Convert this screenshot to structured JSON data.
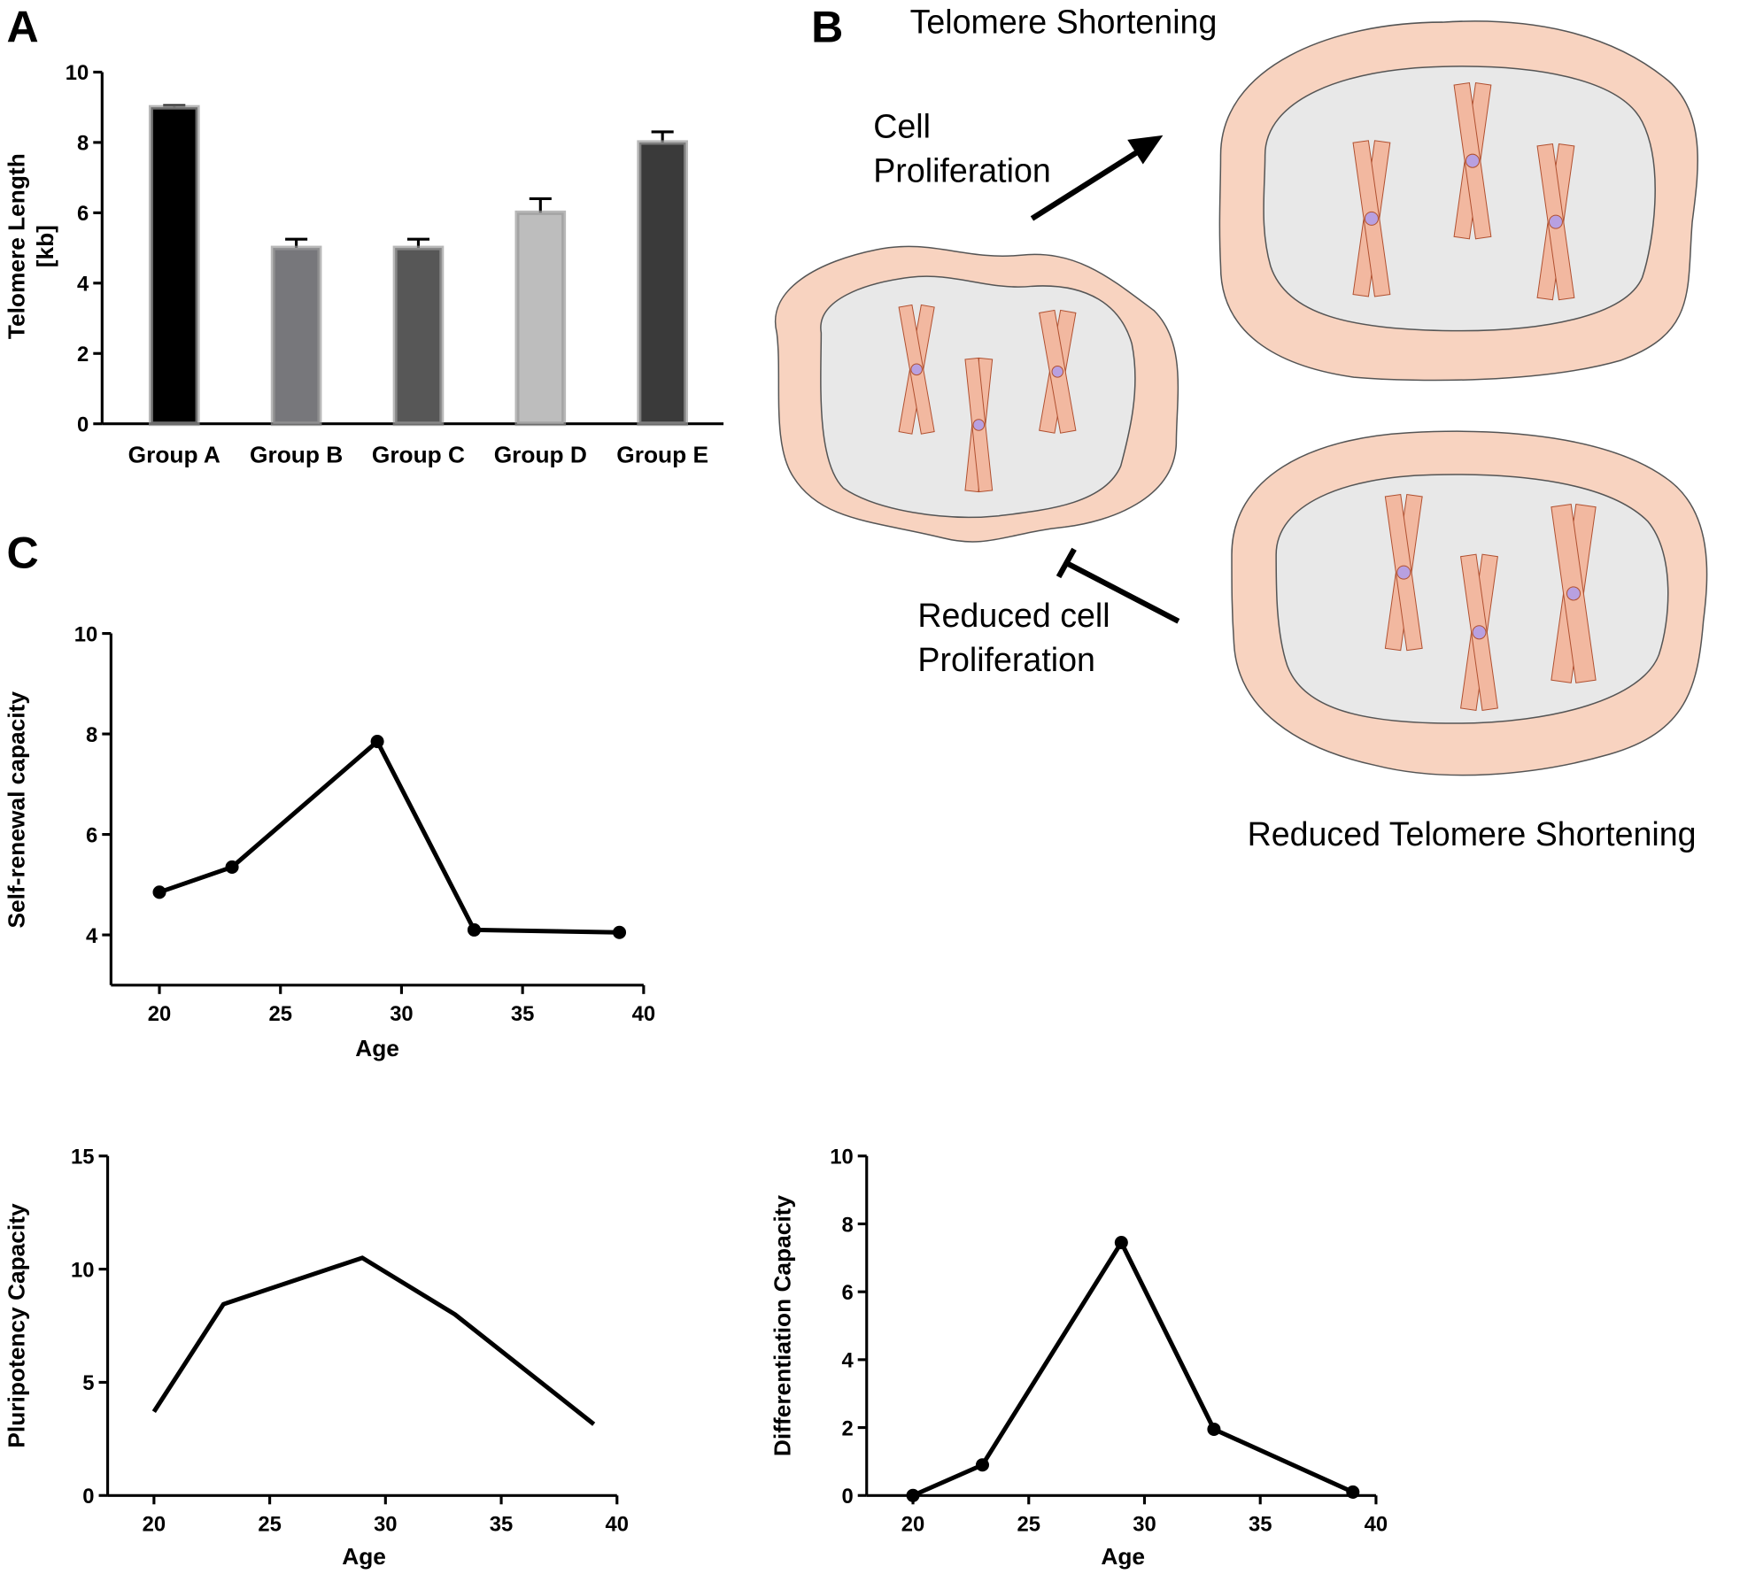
{
  "panel_labels": [
    "A",
    "B",
    "C"
  ],
  "diagram": {
    "top_title": "Telomere Shortening",
    "arrow_label": [
      "Cell",
      "Proliferation"
    ],
    "inhibit_label": [
      "Reduced cell",
      "Proliferation"
    ],
    "bottom_title": "Reduced Telomere Shortening"
  },
  "chart_data": [
    {
      "type": "bar",
      "y_label": [
        "Telomere Length",
        "[kb]"
      ],
      "categories": [
        "Group A",
        "Group B",
        "Group C",
        "Group D",
        "Group E"
      ],
      "values": [
        9,
        5,
        5,
        6,
        8
      ],
      "errors": [
        0.05,
        0.25,
        0.25,
        0.4,
        0.3
      ],
      "colors": [
        "#000000",
        "#77777b",
        "#575757",
        "#bdbdbd",
        "#3a3a3a"
      ],
      "ylim": [
        0,
        10
      ],
      "yticks": [
        0,
        2,
        4,
        6,
        8,
        10
      ]
    },
    {
      "type": "line",
      "y_label": "Self-renewal capacity",
      "x_label": "Age",
      "x": [
        20,
        23,
        29,
        33,
        39
      ],
      "values": [
        4.85,
        5.35,
        7.85,
        4.1,
        4.05
      ],
      "color": "#000000",
      "markers": true,
      "xlim": [
        18,
        40
      ],
      "xticks": [
        20,
        25,
        30,
        35,
        40
      ],
      "ylim": [
        3,
        10
      ],
      "yticks": [
        4,
        6,
        8,
        10
      ]
    },
    {
      "type": "line",
      "y_label": "Pluripotency Capacity",
      "x_label": "Age",
      "x": [
        20,
        23,
        29,
        33,
        39
      ],
      "values": [
        3.7,
        8.45,
        10.5,
        8,
        3.15
      ],
      "color": "#000000",
      "markers": false,
      "xlim": [
        18,
        40
      ],
      "xticks": [
        20,
        25,
        30,
        35,
        40
      ],
      "ylim": [
        0,
        15
      ],
      "yticks": [
        0,
        5,
        10,
        15
      ]
    },
    {
      "type": "line",
      "y_label": "Differentiation Capacity",
      "x_label": "Age",
      "x": [
        20,
        23,
        29,
        33,
        39
      ],
      "values": [
        0,
        0.9,
        7.45,
        1.95,
        0.1
      ],
      "color": "#000000",
      "markers": true,
      "xlim": [
        18,
        40
      ],
      "xticks": [
        20,
        25,
        30,
        35,
        40
      ],
      "ylim": [
        0,
        10
      ],
      "yticks": [
        0,
        2,
        4,
        6,
        8,
        10
      ]
    }
  ]
}
